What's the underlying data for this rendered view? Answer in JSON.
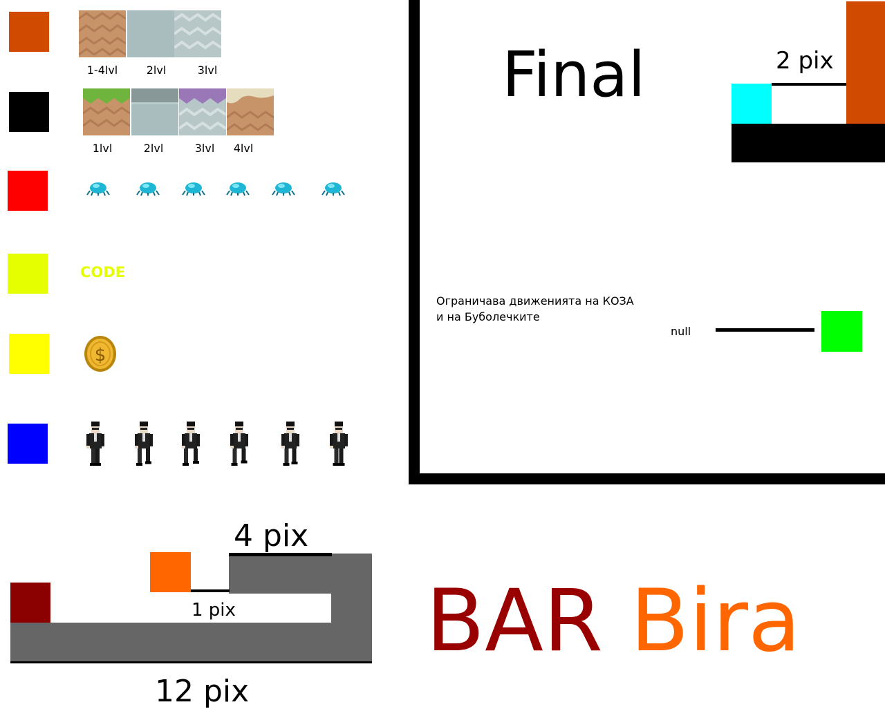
{
  "legend": {
    "rows": [
      {
        "name": "ground-tile",
        "color": "#d04a02"
      },
      {
        "name": "surface-tile",
        "color": "#000000"
      },
      {
        "name": "bug",
        "color": "#ff0000"
      },
      {
        "name": "code",
        "color": "#e6ff00"
      },
      {
        "name": "coin",
        "color": "#ffff00"
      },
      {
        "name": "player",
        "color": "#0000ff"
      }
    ],
    "row1_labels": [
      "1-4lvl",
      "2lvl",
      "3lvl"
    ],
    "row2_labels": [
      "1lvl",
      "2lvl",
      "3lvl",
      "4lvl"
    ],
    "code_label": "CODE",
    "bug_icon": "bug-icon",
    "coin_icon": "coin-icon",
    "player_icon": "agent-icon"
  },
  "final_panel": {
    "title": "Final",
    "gap_label": "2 pix",
    "colors": {
      "cyan": "#00ffff",
      "orange": "#d04a02",
      "green": "#00ff00"
    },
    "note_line1": "Ограничава движенията на КОЗА",
    "note_line2": "и на Буболечките",
    "null_label": "null"
  },
  "bar_diagram": {
    "top_label": "4 pix",
    "middle_label": "1 pix",
    "bottom_label": "12 pix",
    "colors": {
      "dark_red": "#8b0000",
      "orange": "#ff6600",
      "gray": "#666666"
    }
  },
  "bar_title": {
    "word1": "BAR",
    "word2": "Bira",
    "color1": "#990000",
    "color2": "#ff6600"
  }
}
